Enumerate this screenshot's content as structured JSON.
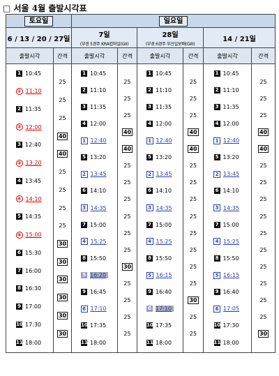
{
  "title": "□ 서울 4월 출발시각표",
  "headers": {
    "saturday": "토요일",
    "sunday": "일요일",
    "sat_dates": "6 / 13 / 20 / 27일",
    "sun_dates": [
      {
        "date": "7일",
        "sub": "(부경 5경주 KRA컵마일(GII)"
      },
      {
        "date": "28일",
        "sub": "(부경 6경주 부산일보배(GIII)"
      },
      {
        "date": "14 / 21일",
        "sub": ""
      }
    ],
    "col_time": "출발시각",
    "col_gap": "간격"
  },
  "columns": [
    {
      "trips": [
        {
          "n": "1",
          "t": "10:45",
          "s": "solid"
        },
        {
          "n": "①",
          "t": "11:10",
          "s": "circle"
        },
        {
          "n": "2",
          "t": "11:35",
          "s": "solid"
        },
        {
          "n": "②",
          "t": "12:00",
          "s": "circle"
        },
        {
          "n": "3",
          "t": "12:40",
          "s": "solid"
        },
        {
          "n": "③",
          "t": "13:20",
          "s": "circle"
        },
        {
          "n": "4",
          "t": "13:45",
          "s": "solid"
        },
        {
          "n": "④",
          "t": "14:10",
          "s": "circle"
        },
        {
          "n": "5",
          "t": "14:35",
          "s": "solid"
        },
        {
          "n": "⑤",
          "t": "15:00",
          "s": "circle"
        },
        {
          "n": "6",
          "t": "15:30",
          "s": "solid"
        },
        {
          "n": "7",
          "t": "16:00",
          "s": "solid"
        },
        {
          "n": "8",
          "t": "16:30",
          "s": "solid"
        },
        {
          "n": "9",
          "t": "17:00",
          "s": "solid"
        },
        {
          "n": "10",
          "t": "17:30",
          "s": "solid"
        },
        {
          "n": "11",
          "t": "18:00",
          "s": "solid"
        }
      ],
      "gaps": [
        "25",
        "25",
        "25",
        "40",
        "40",
        "25",
        "25",
        "25",
        "25",
        "30",
        "30",
        "30",
        "30",
        "30",
        "30"
      ]
    },
    {
      "trips": [
        {
          "n": "1",
          "t": "10:45",
          "s": "solid"
        },
        {
          "n": "2",
          "t": "11:10",
          "s": "solid"
        },
        {
          "n": "3",
          "t": "11:35",
          "s": "solid"
        },
        {
          "n": "4",
          "t": "12:00",
          "s": "solid"
        },
        {
          "n": "1",
          "t": "12:40",
          "s": "outline"
        },
        {
          "n": "5",
          "t": "13:20",
          "s": "solid"
        },
        {
          "n": "2",
          "t": "13:45",
          "s": "outline"
        },
        {
          "n": "6",
          "t": "14:10",
          "s": "solid"
        },
        {
          "n": "3",
          "t": "14:35",
          "s": "outline"
        },
        {
          "n": "7",
          "t": "15:00",
          "s": "solid"
        },
        {
          "n": "4",
          "t": "15:25",
          "s": "outline"
        },
        {
          "n": "8",
          "t": "15:50",
          "s": "solid"
        },
        {
          "n": "5",
          "t": "16:20",
          "s": "grey"
        },
        {
          "n": "9",
          "t": "16:45",
          "s": "solid"
        },
        {
          "n": "6",
          "t": "17:10",
          "s": "outline"
        },
        {
          "n": "10",
          "t": "17:35",
          "s": "solid"
        },
        {
          "n": "11",
          "t": "18:00",
          "s": "solid"
        }
      ],
      "gaps": [
        "25",
        "25",
        "25",
        "40",
        "40",
        "25",
        "25",
        "25",
        "25",
        "25",
        "25",
        "30",
        "25",
        "25",
        "25",
        "25"
      ]
    },
    {
      "trips": [
        {
          "n": "1",
          "t": "10:45",
          "s": "solid"
        },
        {
          "n": "2",
          "t": "11:10",
          "s": "solid"
        },
        {
          "n": "3",
          "t": "11:35",
          "s": "solid"
        },
        {
          "n": "4",
          "t": "12:00",
          "s": "solid"
        },
        {
          "n": "1",
          "t": "12:40",
          "s": "outline"
        },
        {
          "n": "5",
          "t": "13:20",
          "s": "solid"
        },
        {
          "n": "2",
          "t": "13:45",
          "s": "outline"
        },
        {
          "n": "6",
          "t": "14:10",
          "s": "solid"
        },
        {
          "n": "3",
          "t": "14:35",
          "s": "outline"
        },
        {
          "n": "7",
          "t": "15:00",
          "s": "solid"
        },
        {
          "n": "4",
          "t": "15:25",
          "s": "outline"
        },
        {
          "n": "8",
          "t": "15:50",
          "s": "solid"
        },
        {
          "n": "5",
          "t": "16:15",
          "s": "outline"
        },
        {
          "n": "9",
          "t": "16:40",
          "s": "solid"
        },
        {
          "n": "6",
          "t": "17:10",
          "s": "grey"
        },
        {
          "n": "10",
          "t": "17:35",
          "s": "solid"
        },
        {
          "n": "11",
          "t": "18:00",
          "s": "solid"
        }
      ],
      "gaps": [
        "25",
        "25",
        "25",
        "40",
        "40",
        "25",
        "25",
        "25",
        "25",
        "25",
        "25",
        "25",
        "25",
        "30",
        "25",
        "25"
      ]
    },
    {
      "trips": [
        {
          "n": "1",
          "t": "10:45",
          "s": "solid"
        },
        {
          "n": "2",
          "t": "11:10",
          "s": "solid"
        },
        {
          "n": "3",
          "t": "11:35",
          "s": "solid"
        },
        {
          "n": "4",
          "t": "12:00",
          "s": "solid"
        },
        {
          "n": "1",
          "t": "12:40",
          "s": "outline"
        },
        {
          "n": "5",
          "t": "13:20",
          "s": "solid"
        },
        {
          "n": "2",
          "t": "13:45",
          "s": "outline"
        },
        {
          "n": "6",
          "t": "14:10",
          "s": "solid"
        },
        {
          "n": "3",
          "t": "14:35",
          "s": "outline"
        },
        {
          "n": "7",
          "t": "15:00",
          "s": "solid"
        },
        {
          "n": "4",
          "t": "15:25",
          "s": "outline"
        },
        {
          "n": "8",
          "t": "15:50",
          "s": "solid"
        },
        {
          "n": "5",
          "t": "16:15",
          "s": "outline"
        },
        {
          "n": "9",
          "t": "16:40",
          "s": "solid"
        },
        {
          "n": "6",
          "t": "17:05",
          "s": "outline"
        },
        {
          "n": "10",
          "t": "17:30",
          "s": "solid"
        },
        {
          "n": "11",
          "t": "18:00",
          "s": "solid"
        }
      ],
      "gaps": [
        "25",
        "25",
        "25",
        "40",
        "40",
        "25",
        "25",
        "25",
        "25",
        "25",
        "25",
        "25",
        "25",
        "25",
        "25",
        "30"
      ]
    }
  ],
  "colors": {
    "header_blue": "#c8d7ea",
    "red_race": "#cc0000",
    "blue_race": "#2a3fb0"
  }
}
